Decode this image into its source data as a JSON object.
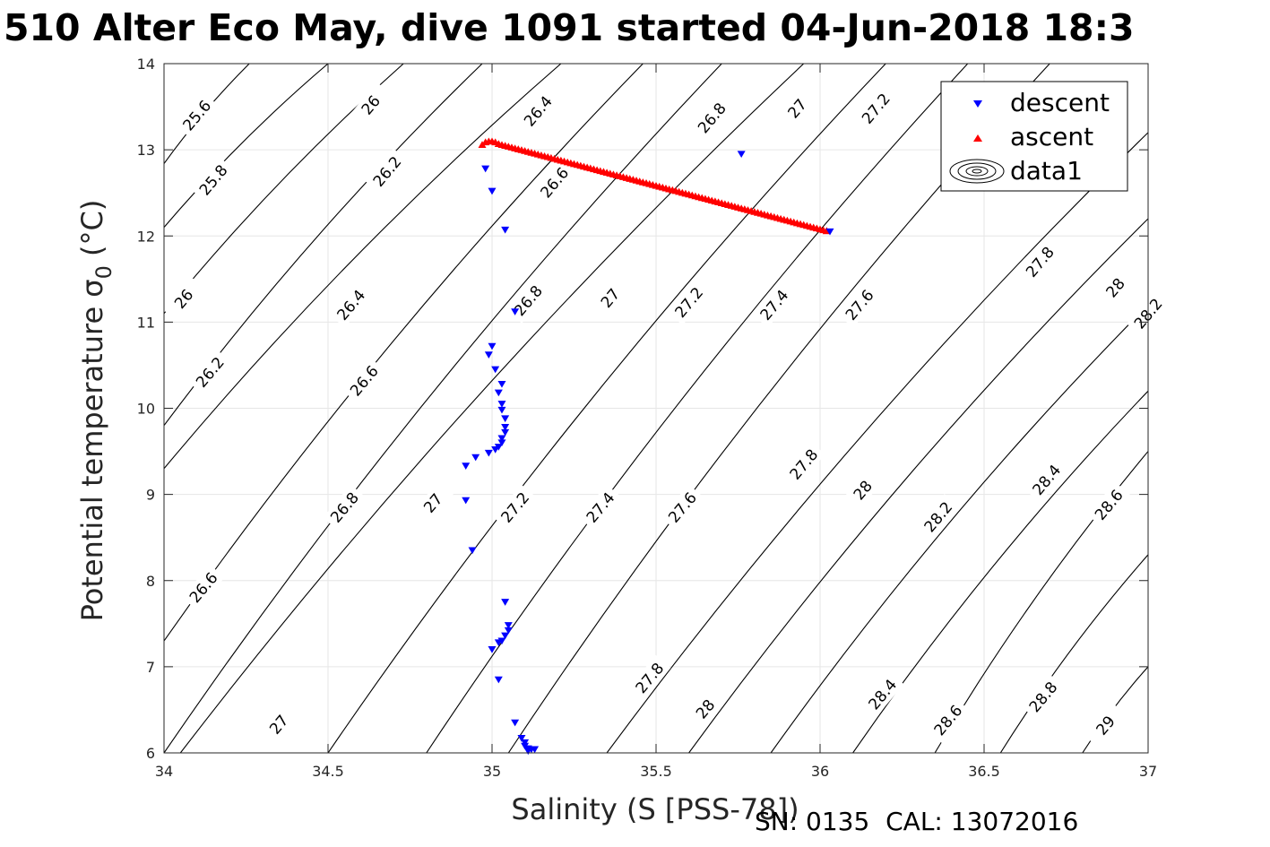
{
  "title": "510 Alter Eco May, dive 1091 started 04-Jun-2018 18:3",
  "footer": "SN: 0135  CAL: 13072016",
  "chart_data": {
    "type": "scatter",
    "title": "510 Alter Eco May, dive 1091 started 04-Jun-2018 18:3",
    "xlabel": "Salinity (S [PSS-78])",
    "ylabel": "Potential temperature σ",
    "ylabel_subscript": "0",
    "ylabel_unit": " (°C)",
    "xlim": [
      34,
      37
    ],
    "ylim": [
      6,
      14
    ],
    "xticks": [
      "34",
      "34.5",
      "35",
      "35.5",
      "36",
      "36.5",
      "37"
    ],
    "yticks": [
      "6",
      "7",
      "8",
      "9",
      "10",
      "11",
      "12",
      "13",
      "14"
    ],
    "grid": true,
    "legend_position": "top-right",
    "legend": [
      {
        "name": "descent",
        "marker": "triangle-down",
        "color": "#0000ff"
      },
      {
        "name": "ascent",
        "marker": "triangle-up",
        "color": "#ff0000"
      },
      {
        "name": "data1",
        "marker": "contour",
        "color": "#000000"
      }
    ],
    "series": [
      {
        "name": "descent",
        "color": "#0000ff",
        "marker": "triangle-down",
        "points": [
          [
            34.98,
            12.78
          ],
          [
            35.0,
            12.52
          ],
          [
            35.04,
            12.07
          ],
          [
            35.76,
            12.95
          ],
          [
            36.03,
            12.05
          ],
          [
            35.07,
            11.12
          ],
          [
            35.0,
            10.72
          ],
          [
            34.99,
            10.62
          ],
          [
            35.01,
            10.45
          ],
          [
            35.03,
            10.28
          ],
          [
            35.02,
            10.18
          ],
          [
            35.03,
            10.05
          ],
          [
            35.03,
            9.98
          ],
          [
            35.04,
            9.88
          ],
          [
            35.04,
            9.78
          ],
          [
            35.04,
            9.72
          ],
          [
            35.03,
            9.65
          ],
          [
            35.03,
            9.6
          ],
          [
            35.02,
            9.55
          ],
          [
            35.01,
            9.52
          ],
          [
            34.99,
            9.48
          ],
          [
            34.95,
            9.43
          ],
          [
            34.92,
            9.33
          ],
          [
            34.92,
            8.93
          ],
          [
            34.94,
            8.35
          ],
          [
            35.04,
            7.75
          ],
          [
            35.05,
            7.48
          ],
          [
            35.05,
            7.42
          ],
          [
            35.04,
            7.36
          ],
          [
            35.03,
            7.3
          ],
          [
            35.02,
            7.28
          ],
          [
            35.0,
            7.2
          ],
          [
            35.02,
            6.85
          ],
          [
            35.07,
            6.35
          ],
          [
            35.09,
            6.17
          ],
          [
            35.1,
            6.12
          ],
          [
            35.1,
            6.08
          ],
          [
            35.11,
            6.05
          ],
          [
            35.12,
            6.04
          ],
          [
            35.13,
            6.04
          ],
          [
            35.11,
            6.02
          ]
        ]
      },
      {
        "name": "ascent",
        "color": "#ff0000",
        "marker": "triangle-up",
        "points": [
          [
            34.97,
            13.06
          ],
          [
            34.98,
            13.09
          ],
          [
            34.99,
            13.1
          ],
          [
            35.0,
            13.1
          ],
          [
            35.01,
            13.09
          ],
          [
            35.02,
            13.07
          ],
          [
            36.02,
            12.06
          ]
        ]
      }
    ],
    "contour_labels": [
      {
        "text": "25.6",
        "s": 34.1,
        "t": 13.4
      },
      {
        "text": "26",
        "s": 34.63,
        "t": 13.52
      },
      {
        "text": "26.4",
        "s": 35.14,
        "t": 13.45
      },
      {
        "text": "26.8",
        "s": 35.67,
        "t": 13.37
      },
      {
        "text": "27",
        "s": 35.93,
        "t": 13.48
      },
      {
        "text": "27.2",
        "s": 36.17,
        "t": 13.48
      },
      {
        "text": "25.8",
        "s": 34.15,
        "t": 12.65
      },
      {
        "text": "26.2",
        "s": 34.68,
        "t": 12.75
      },
      {
        "text": "26.6",
        "s": 35.19,
        "t": 12.62
      },
      {
        "text": "26",
        "s": 34.06,
        "t": 11.27
      },
      {
        "text": "26.4",
        "s": 34.57,
        "t": 11.2
      },
      {
        "text": "26.8",
        "s": 35.11,
        "t": 11.25
      },
      {
        "text": "27",
        "s": 35.36,
        "t": 11.28
      },
      {
        "text": "27.2",
        "s": 35.6,
        "t": 11.23
      },
      {
        "text": "27.4",
        "s": 35.86,
        "t": 11.2
      },
      {
        "text": "27.6",
        "s": 36.12,
        "t": 11.2
      },
      {
        "text": "27.8",
        "s": 36.67,
        "t": 11.7
      },
      {
        "text": "28",
        "s": 36.9,
        "t": 11.4
      },
      {
        "text": "28.2",
        "s": 37.0,
        "t": 11.1
      },
      {
        "text": "26.2",
        "s": 34.14,
        "t": 10.42
      },
      {
        "text": "26.6",
        "s": 34.61,
        "t": 10.32
      },
      {
        "text": "26.8",
        "s": 34.55,
        "t": 8.85
      },
      {
        "text": "27",
        "s": 34.82,
        "t": 8.9
      },
      {
        "text": "27.2",
        "s": 35.07,
        "t": 8.85
      },
      {
        "text": "27.4",
        "s": 35.33,
        "t": 8.85
      },
      {
        "text": "27.6",
        "s": 35.58,
        "t": 8.85
      },
      {
        "text": "27.8",
        "s": 35.95,
        "t": 9.35
      },
      {
        "text": "28",
        "s": 36.13,
        "t": 9.05
      },
      {
        "text": "28.2",
        "s": 36.36,
        "t": 8.74
      },
      {
        "text": "28.4",
        "s": 36.69,
        "t": 9.17
      },
      {
        "text": "28.6",
        "s": 36.88,
        "t": 8.88
      },
      {
        "text": "26.6",
        "s": 34.12,
        "t": 7.92
      },
      {
        "text": "27",
        "s": 34.35,
        "t": 6.33
      },
      {
        "text": "27.8",
        "s": 35.48,
        "t": 6.87
      },
      {
        "text": "28",
        "s": 35.65,
        "t": 6.51
      },
      {
        "text": "28.4",
        "s": 36.19,
        "t": 6.68
      },
      {
        "text": "28.6",
        "s": 36.39,
        "t": 6.38
      },
      {
        "text": "28.8",
        "s": 36.68,
        "t": 6.65
      },
      {
        "text": "29",
        "s": 36.87,
        "t": 6.32
      }
    ],
    "contour_lines": [
      {
        "level": "25.6",
        "points": [
          [
            34.0,
            12.84
          ],
          [
            34.26,
            14.0
          ]
        ]
      },
      {
        "level": "25.8",
        "points": [
          [
            34.0,
            12.1
          ],
          [
            34.5,
            14.0
          ]
        ]
      },
      {
        "level": "26",
        "points": [
          [
            34.0,
            11.1
          ],
          [
            34.73,
            14.0
          ]
        ]
      },
      {
        "level": "26.2",
        "points": [
          [
            34.0,
            9.8
          ],
          [
            34.97,
            14.0
          ]
        ]
      },
      {
        "level": "26.4",
        "points": [
          [
            34.0,
            9.3
          ],
          [
            35.21,
            14.0
          ]
        ]
      },
      {
        "level": "26.6",
        "points": [
          [
            34.0,
            7.3
          ],
          [
            35.46,
            14.0
          ]
        ]
      },
      {
        "level": "26.8",
        "points": [
          [
            34.0,
            6.0
          ],
          [
            35.7,
            14.0
          ]
        ]
      },
      {
        "level": "27",
        "points": [
          [
            34.05,
            6.0
          ],
          [
            35.95,
            14.0
          ]
        ]
      },
      {
        "level": "27.2",
        "points": [
          [
            34.5,
            6.0
          ],
          [
            36.2,
            14.0
          ]
        ]
      },
      {
        "level": "27.4",
        "points": [
          [
            34.8,
            6.0
          ],
          [
            36.45,
            14.0
          ]
        ]
      },
      {
        "level": "27.6",
        "points": [
          [
            35.05,
            6.0
          ],
          [
            36.7,
            14.0
          ]
        ]
      },
      {
        "level": "27.8",
        "points": [
          [
            35.35,
            6.0
          ],
          [
            37.0,
            13.2
          ]
        ]
      },
      {
        "level": "28",
        "points": [
          [
            35.6,
            6.0
          ],
          [
            37.0,
            12.2
          ]
        ]
      },
      {
        "level": "28.2",
        "points": [
          [
            35.85,
            6.0
          ],
          [
            37.0,
            11.2
          ]
        ]
      },
      {
        "level": "28.4",
        "points": [
          [
            36.1,
            6.0
          ],
          [
            37.0,
            10.2
          ]
        ]
      },
      {
        "level": "28.6",
        "points": [
          [
            36.35,
            6.0
          ],
          [
            37.0,
            9.5
          ]
        ]
      },
      {
        "level": "28.8",
        "points": [
          [
            36.55,
            6.0
          ],
          [
            37.0,
            8.3
          ]
        ]
      },
      {
        "level": "29",
        "points": [
          [
            36.8,
            6.0
          ],
          [
            37.0,
            7.0
          ]
        ]
      }
    ]
  }
}
